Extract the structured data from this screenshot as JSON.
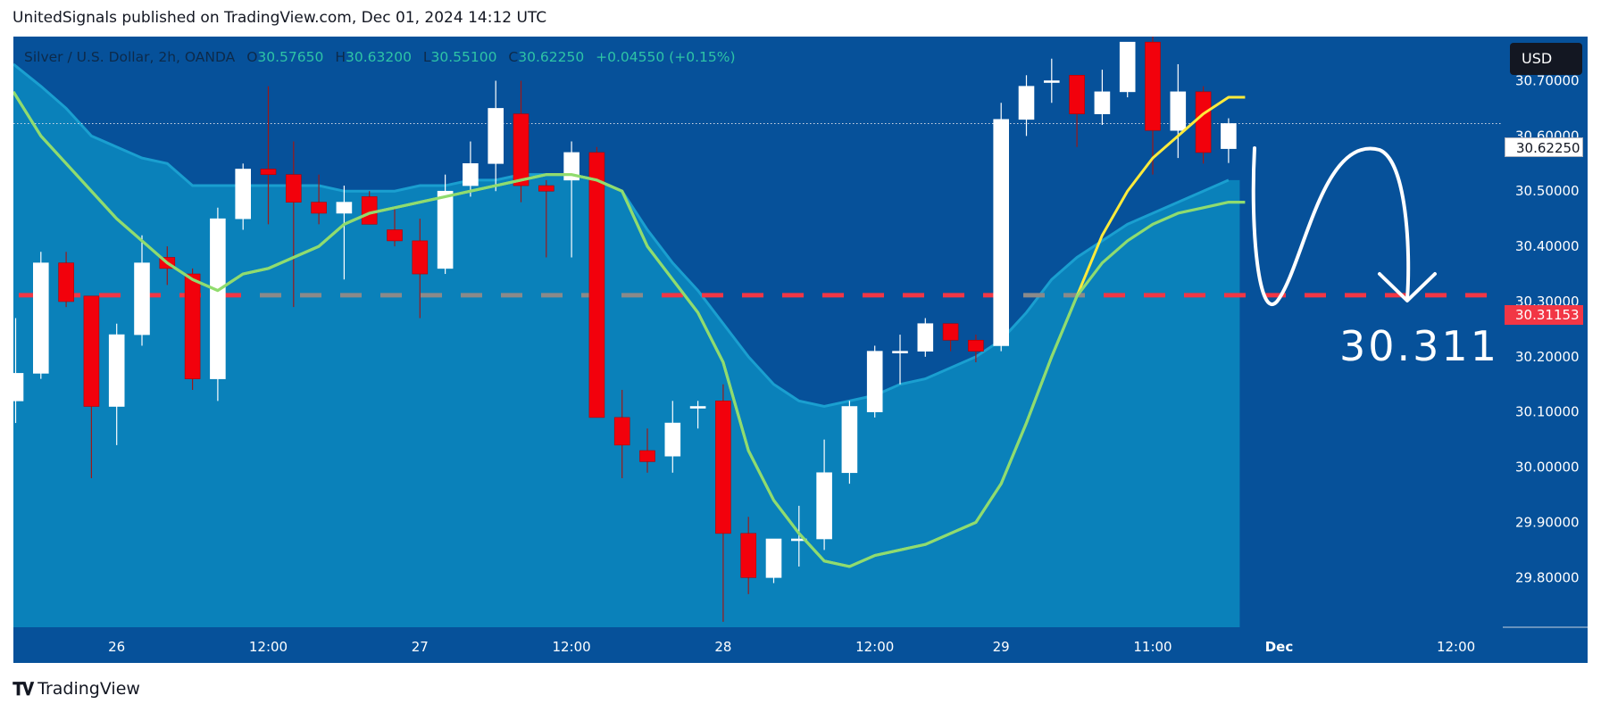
{
  "header": {
    "credit": "UnitedSignals published on TradingView.com, Dec 01, 2024 14:12 UTC"
  },
  "legend": {
    "symbol": "Silver / U.S. Dollar, 2h, OANDA",
    "o_label": "O",
    "open": "30.57650",
    "h_label": "H",
    "high": "30.63200",
    "l_label": "L",
    "low": "30.55100",
    "c_label": "C",
    "close": "30.62250",
    "change": "+0.04550 (+0.15%)"
  },
  "currency_button": "USD",
  "price_tags": {
    "last": "30.62250",
    "level": "30.31153"
  },
  "annotation": {
    "target_text": "30.311"
  },
  "footer": {
    "brand": "TradingView"
  },
  "colors": {
    "background": "#06519a",
    "area_fill": "#0b86bd",
    "up_candle": "#ffffff",
    "down_candle": "#f2010c",
    "ma_fast": "#ffeb3b",
    "ma_slow": "#8fdc6f",
    "level_line": "#f23645"
  },
  "chart_data": {
    "type": "candlestick",
    "symbol": "Silver / U.S. Dollar",
    "interval": "2h",
    "ylim": [
      29.71,
      30.78
    ],
    "y_ticks": [
      "30.70000",
      "30.60000",
      "30.50000",
      "30.40000",
      "30.30000",
      "30.20000",
      "30.10000",
      "30.00000",
      "29.90000",
      "29.80000"
    ],
    "y_tick_values": [
      30.7,
      30.6,
      30.5,
      30.4,
      30.3,
      30.2,
      30.1,
      30.0,
      29.9,
      29.8
    ],
    "x_ticks": [
      {
        "label": "26",
        "index": 4
      },
      {
        "label": "12:00",
        "index": 10
      },
      {
        "label": "27",
        "index": 16
      },
      {
        "label": "12:00",
        "index": 22
      },
      {
        "label": "28",
        "index": 28
      },
      {
        "label": "12:00",
        "index": 34
      },
      {
        "label": "29",
        "index": 39
      },
      {
        "label": "11:00",
        "index": 45
      },
      {
        "label": "Dec",
        "index": 50
      },
      {
        "label": "12:00",
        "index": 57
      }
    ],
    "candles": [
      {
        "o": 30.12,
        "h": 30.27,
        "l": 30.08,
        "c": 30.17
      },
      {
        "o": 30.17,
        "h": 30.39,
        "l": 30.16,
        "c": 30.37
      },
      {
        "o": 30.37,
        "h": 30.39,
        "l": 30.29,
        "c": 30.3
      },
      {
        "o": 30.31,
        "h": 30.31,
        "l": 29.98,
        "c": 30.11
      },
      {
        "o": 30.11,
        "h": 30.26,
        "l": 30.04,
        "c": 30.24
      },
      {
        "o": 30.24,
        "h": 30.42,
        "l": 30.22,
        "c": 30.37
      },
      {
        "o": 30.38,
        "h": 30.4,
        "l": 30.33,
        "c": 30.36
      },
      {
        "o": 30.35,
        "h": 30.36,
        "l": 30.14,
        "c": 30.16
      },
      {
        "o": 30.16,
        "h": 30.47,
        "l": 30.12,
        "c": 30.45
      },
      {
        "o": 30.45,
        "h": 30.55,
        "l": 30.43,
        "c": 30.54
      },
      {
        "o": 30.54,
        "h": 30.69,
        "l": 30.44,
        "c": 30.53
      },
      {
        "o": 30.53,
        "h": 30.59,
        "l": 30.29,
        "c": 30.48
      },
      {
        "o": 30.48,
        "h": 30.53,
        "l": 30.44,
        "c": 30.46
      },
      {
        "o": 30.46,
        "h": 30.51,
        "l": 30.34,
        "c": 30.48
      },
      {
        "o": 30.49,
        "h": 30.5,
        "l": 30.44,
        "c": 30.44
      },
      {
        "o": 30.43,
        "h": 30.47,
        "l": 30.4,
        "c": 30.41
      },
      {
        "o": 30.41,
        "h": 30.45,
        "l": 30.27,
        "c": 30.35
      },
      {
        "o": 30.36,
        "h": 30.53,
        "l": 30.35,
        "c": 30.5
      },
      {
        "o": 30.51,
        "h": 30.59,
        "l": 30.49,
        "c": 30.55
      },
      {
        "o": 30.55,
        "h": 30.7,
        "l": 30.5,
        "c": 30.65
      },
      {
        "o": 30.64,
        "h": 30.7,
        "l": 30.48,
        "c": 30.51
      },
      {
        "o": 30.51,
        "h": 30.52,
        "l": 30.38,
        "c": 30.5
      },
      {
        "o": 30.52,
        "h": 30.59,
        "l": 30.38,
        "c": 30.57
      },
      {
        "o": 30.57,
        "h": 30.58,
        "l": 30.09,
        "c": 30.09
      },
      {
        "o": 30.09,
        "h": 30.14,
        "l": 29.98,
        "c": 30.04
      },
      {
        "o": 30.03,
        "h": 30.07,
        "l": 29.99,
        "c": 30.01
      },
      {
        "o": 30.02,
        "h": 30.12,
        "l": 29.99,
        "c": 30.08
      },
      {
        "o": 30.11,
        "h": 30.12,
        "l": 30.07,
        "c": 30.11
      },
      {
        "o": 30.12,
        "h": 30.15,
        "l": 29.72,
        "c": 29.88
      },
      {
        "o": 29.88,
        "h": 29.91,
        "l": 29.77,
        "c": 29.8
      },
      {
        "o": 29.8,
        "h": 29.87,
        "l": 29.79,
        "c": 29.87
      },
      {
        "o": 29.87,
        "h": 29.93,
        "l": 29.82,
        "c": 29.87
      },
      {
        "o": 29.87,
        "h": 30.05,
        "l": 29.85,
        "c": 29.99
      },
      {
        "o": 29.99,
        "h": 30.12,
        "l": 29.97,
        "c": 30.11
      },
      {
        "o": 30.1,
        "h": 30.22,
        "l": 30.09,
        "c": 30.21
      },
      {
        "o": 30.21,
        "h": 30.24,
        "l": 30.15,
        "c": 30.21
      },
      {
        "o": 30.21,
        "h": 30.27,
        "l": 30.2,
        "c": 30.26
      },
      {
        "o": 30.26,
        "h": 30.26,
        "l": 30.21,
        "c": 30.23
      },
      {
        "o": 30.23,
        "h": 30.24,
        "l": 30.19,
        "c": 30.21
      },
      {
        "o": 30.22,
        "h": 30.66,
        "l": 30.21,
        "c": 30.63
      },
      {
        "o": 30.63,
        "h": 30.71,
        "l": 30.6,
        "c": 30.69
      },
      {
        "o": 30.7,
        "h": 30.74,
        "l": 30.66,
        "c": 30.7
      },
      {
        "o": 30.71,
        "h": 30.71,
        "l": 30.58,
        "c": 30.64
      },
      {
        "o": 30.64,
        "h": 30.72,
        "l": 30.62,
        "c": 30.68
      },
      {
        "o": 30.68,
        "h": 30.77,
        "l": 30.67,
        "c": 30.77
      },
      {
        "o": 30.77,
        "h": 30.8,
        "l": 30.53,
        "c": 30.61
      },
      {
        "o": 30.61,
        "h": 30.73,
        "l": 30.56,
        "c": 30.68
      },
      {
        "o": 30.68,
        "h": 30.69,
        "l": 30.55,
        "c": 30.57
      },
      {
        "o": 30.577,
        "h": 30.632,
        "l": 30.551,
        "c": 30.6225
      }
    ],
    "ma_fast": [
      30.68,
      30.6,
      30.55,
      30.5,
      30.45,
      30.41,
      30.37,
      30.34,
      30.32,
      30.35,
      30.36,
      30.38,
      30.4,
      30.44,
      30.46,
      30.47,
      30.48,
      30.49,
      30.5,
      30.51,
      30.52,
      30.53,
      30.53,
      30.52,
      30.5,
      30.4,
      30.34,
      30.28,
      30.19,
      30.03,
      29.94,
      29.88,
      29.83,
      29.82,
      29.84,
      29.85,
      29.86,
      29.88,
      29.9,
      29.97,
      30.08,
      30.2,
      30.31,
      30.42,
      30.5,
      30.56,
      30.6,
      30.64,
      30.67
    ],
    "ma_slow": [
      30.68,
      30.6,
      30.55,
      30.5,
      30.45,
      30.41,
      30.37,
      30.34,
      30.32,
      30.35,
      30.36,
      30.38,
      30.4,
      30.44,
      30.46,
      30.47,
      30.48,
      30.49,
      30.5,
      30.51,
      30.52,
      30.53,
      30.53,
      30.52,
      30.5,
      30.4,
      30.34,
      30.28,
      30.19,
      30.03,
      29.94,
      29.88,
      29.83,
      29.82,
      29.84,
      29.85,
      29.86,
      29.88,
      29.9,
      29.97,
      30.08,
      30.2,
      30.31,
      30.37,
      30.41,
      30.44,
      30.46,
      30.47,
      30.48
    ],
    "area_upper": [
      30.73,
      30.69,
      30.65,
      30.6,
      30.58,
      30.56,
      30.55,
      30.51,
      30.51,
      30.51,
      30.51,
      30.51,
      30.51,
      30.5,
      30.5,
      30.5,
      30.51,
      30.51,
      30.52,
      30.52,
      30.53,
      30.53,
      30.53,
      30.52,
      30.5,
      30.43,
      30.37,
      30.32,
      30.26,
      30.2,
      30.15,
      30.12,
      30.11,
      30.12,
      30.13,
      30.15,
      30.16,
      30.18,
      30.2,
      30.23,
      30.28,
      30.34,
      30.38,
      30.41,
      30.44,
      30.46,
      30.48,
      30.5,
      30.52
    ],
    "level": 30.31153,
    "projected_target": 30.311
  }
}
